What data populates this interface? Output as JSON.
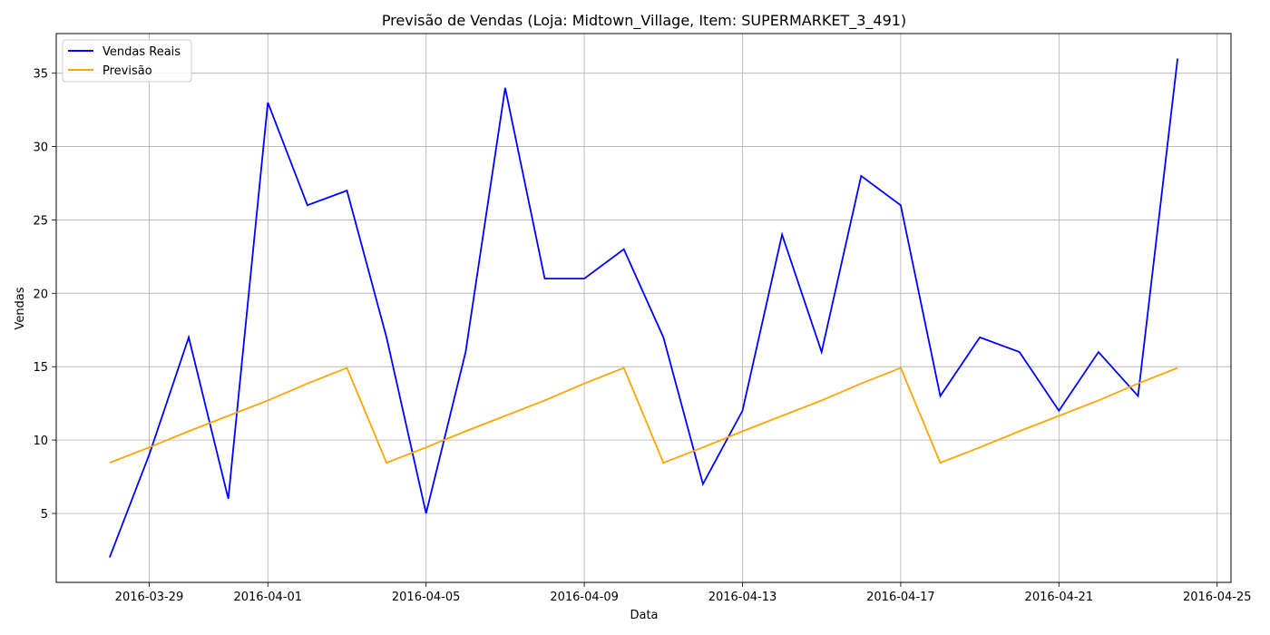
{
  "chart_data": {
    "type": "line",
    "title": "Previsão de Vendas (Loja: Midtown_Village, Item: SUPERMARKET_3_491)",
    "xlabel": "Data",
    "ylabel": "Vendas",
    "x": [
      "2016-03-28",
      "2016-03-29",
      "2016-03-30",
      "2016-03-31",
      "2016-04-01",
      "2016-04-02",
      "2016-04-03",
      "2016-04-04",
      "2016-04-05",
      "2016-04-06",
      "2016-04-07",
      "2016-04-08",
      "2016-04-09",
      "2016-04-10",
      "2016-04-11",
      "2016-04-12",
      "2016-04-13",
      "2016-04-14",
      "2016-04-15",
      "2016-04-16",
      "2016-04-17",
      "2016-04-18",
      "2016-04-19",
      "2016-04-20",
      "2016-04-21",
      "2016-04-22",
      "2016-04-23",
      "2016-04-24"
    ],
    "series": [
      {
        "name": "Vendas Reais",
        "color": "#0000ff",
        "values": [
          2,
          9,
          17,
          6,
          33,
          26,
          27,
          17,
          5,
          16,
          34,
          21,
          21,
          23,
          17,
          7,
          12,
          24,
          16,
          28,
          26,
          13,
          17,
          16,
          12,
          16,
          13,
          36
        ]
      },
      {
        "name": "Previsão",
        "color": "#ffa500",
        "values": [
          8.45,
          9.5,
          10.6,
          11.65,
          12.7,
          13.85,
          14.92,
          8.45,
          9.5,
          10.6,
          11.65,
          12.7,
          13.85,
          14.92,
          8.45,
          9.5,
          10.6,
          11.65,
          12.7,
          13.85,
          14.92,
          8.45,
          9.5,
          10.6,
          11.65,
          12.7,
          13.85,
          14.92
        ]
      }
    ],
    "xticks": [
      "2016-03-29",
      "2016-04-01",
      "2016-04-05",
      "2016-04-09",
      "2016-04-13",
      "2016-04-17",
      "2016-04-21",
      "2016-04-25"
    ],
    "yticks": [
      5,
      10,
      15,
      20,
      25,
      30,
      35
    ],
    "xlim": [
      "2016-03-26 15:36",
      "2016-04-25 08:24"
    ],
    "ylim": [
      0.3,
      37.7
    ],
    "grid": true,
    "legend_position": "top-left"
  }
}
